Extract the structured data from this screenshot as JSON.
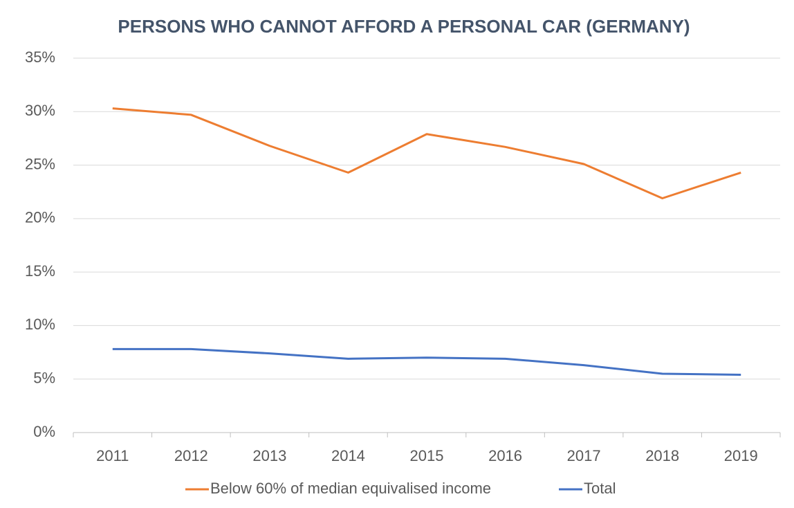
{
  "chart_data": {
    "type": "line",
    "title": "PERSONS WHO CANNOT AFFORD A PERSONAL CAR (GERMANY)",
    "categories": [
      "2011",
      "2012",
      "2013",
      "2014",
      "2015",
      "2016",
      "2017",
      "2018",
      "2019"
    ],
    "series": [
      {
        "name": "Below 60% of median equivalised income",
        "color": "#ed7d31",
        "values": [
          30.3,
          29.7,
          26.8,
          24.3,
          27.9,
          26.7,
          25.1,
          21.9,
          24.3
        ]
      },
      {
        "name": "Total",
        "color": "#4472c4",
        "values": [
          7.8,
          7.8,
          7.4,
          6.9,
          7.0,
          6.9,
          6.3,
          5.5,
          5.4
        ]
      }
    ],
    "ylim": [
      0,
      35
    ],
    "yticks": [
      {
        "value": 0,
        "label": "0%"
      },
      {
        "value": 5,
        "label": "5%"
      },
      {
        "value": 10,
        "label": "10%"
      },
      {
        "value": 15,
        "label": "15%"
      },
      {
        "value": 20,
        "label": "20%"
      },
      {
        "value": 25,
        "label": "25%"
      },
      {
        "value": 30,
        "label": "30%"
      },
      {
        "value": 35,
        "label": "35%"
      }
    ],
    "grid": true,
    "legend": "bottom"
  }
}
